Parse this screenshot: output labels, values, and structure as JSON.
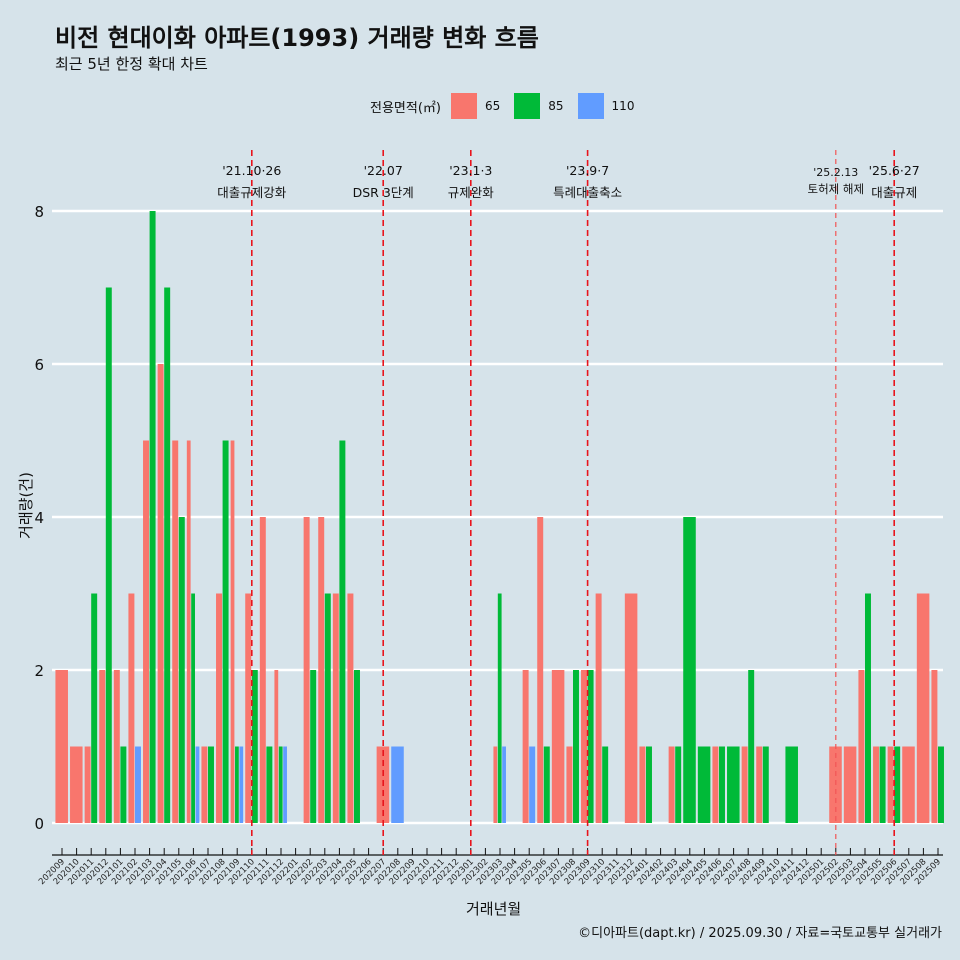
{
  "title": "비전 현대이화 아파트(1993) 거래량 변화 흐름",
  "subtitle": "최근 5년 한정 확대 차트",
  "caption": "©디아파트(dapt.kr) / 2025.09.30 / 자료=국토교통부 실거래가",
  "legend": {
    "title": "전용면적(㎡)",
    "items": [
      {
        "label": "65",
        "color": "#f8766d"
      },
      {
        "label": "85",
        "color": "#00ba38"
      },
      {
        "label": "110",
        "color": "#619cff"
      }
    ]
  },
  "chart_data": {
    "type": "bar",
    "title": "비전 현대이화 아파트(1993) 거래량 변화 흐름",
    "xlabel": "거래년월",
    "ylabel": "거래량(건)",
    "ylim": [
      0,
      8
    ],
    "yticks": [
      0,
      2,
      4,
      6,
      8
    ],
    "grid": true,
    "legend_position": "top",
    "categories": [
      "202009",
      "202010",
      "202011",
      "202012",
      "202101",
      "202102",
      "202103",
      "202104",
      "202105",
      "202106",
      "202107",
      "202108",
      "202109",
      "202110",
      "202111",
      "202112",
      "202201",
      "202202",
      "202203",
      "202204",
      "202205",
      "202206",
      "202207",
      "202208",
      "202209",
      "202210",
      "202211",
      "202212",
      "202301",
      "202302",
      "202303",
      "202304",
      "202305",
      "202306",
      "202307",
      "202308",
      "202309",
      "202310",
      "202311",
      "202312",
      "202401",
      "202402",
      "202403",
      "202404",
      "202405",
      "202406",
      "202407",
      "202408",
      "202409",
      "202410",
      "202411",
      "202412",
      "202501",
      "202502",
      "202503",
      "202504",
      "202505",
      "202506",
      "202507",
      "202508",
      "202509"
    ],
    "series": [
      {
        "name": "65",
        "values": [
          2,
          1,
          1,
          2,
          2,
          3,
          5,
          6,
          5,
          5,
          1,
          3,
          5,
          3,
          4,
          2,
          0,
          4,
          4,
          3,
          3,
          0,
          1,
          0,
          0,
          0,
          0,
          0,
          0,
          0,
          1,
          0,
          2,
          4,
          2,
          1,
          2,
          3,
          0,
          3,
          1,
          0,
          1,
          0,
          0,
          1,
          0,
          1,
          1,
          0,
          0,
          0,
          0,
          1,
          1,
          2,
          1,
          1,
          1,
          3,
          2
        ]
      },
      {
        "name": "85",
        "values": [
          0,
          0,
          3,
          7,
          1,
          0,
          8,
          7,
          4,
          3,
          1,
          5,
          1,
          2,
          1,
          1,
          0,
          2,
          3,
          5,
          2,
          0,
          0,
          0,
          0,
          0,
          0,
          0,
          0,
          0,
          3,
          0,
          0,
          1,
          0,
          2,
          2,
          1,
          0,
          0,
          1,
          0,
          1,
          4,
          1,
          1,
          1,
          2,
          1,
          0,
          1,
          0,
          0,
          0,
          0,
          3,
          1,
          1,
          0,
          0,
          1
        ]
      },
      {
        "name": "110",
        "values": [
          0,
          0,
          0,
          0,
          0,
          1,
          0,
          0,
          0,
          1,
          0,
          0,
          1,
          0,
          0,
          1,
          0,
          0,
          0,
          0,
          0,
          0,
          0,
          1,
          0,
          0,
          0,
          0,
          0,
          0,
          1,
          0,
          1,
          0,
          0,
          0,
          0,
          0,
          0,
          0,
          0,
          0,
          0,
          0,
          0,
          0,
          0,
          0,
          0,
          0,
          0,
          0,
          0,
          0,
          0,
          0,
          0,
          0,
          0,
          0,
          0
        ]
      }
    ],
    "events": [
      {
        "x": "202110",
        "date": "'21.10·26",
        "label": "대출규제강화",
        "style": "major"
      },
      {
        "x": "202207",
        "date": "'22.07",
        "label": "DSR 3단계",
        "style": "major"
      },
      {
        "x": "202301",
        "date": "'23.1·3",
        "label": "규제완화",
        "style": "major"
      },
      {
        "x": "202309",
        "date": "'23.9·7",
        "label": "특례대출축소",
        "style": "major"
      },
      {
        "x": "202502",
        "date": "'25.2.13",
        "label": "토허제 해제",
        "style": "minor"
      },
      {
        "x": "202506",
        "date": "'25.6·27",
        "label": "대출규제",
        "style": "major"
      }
    ]
  }
}
